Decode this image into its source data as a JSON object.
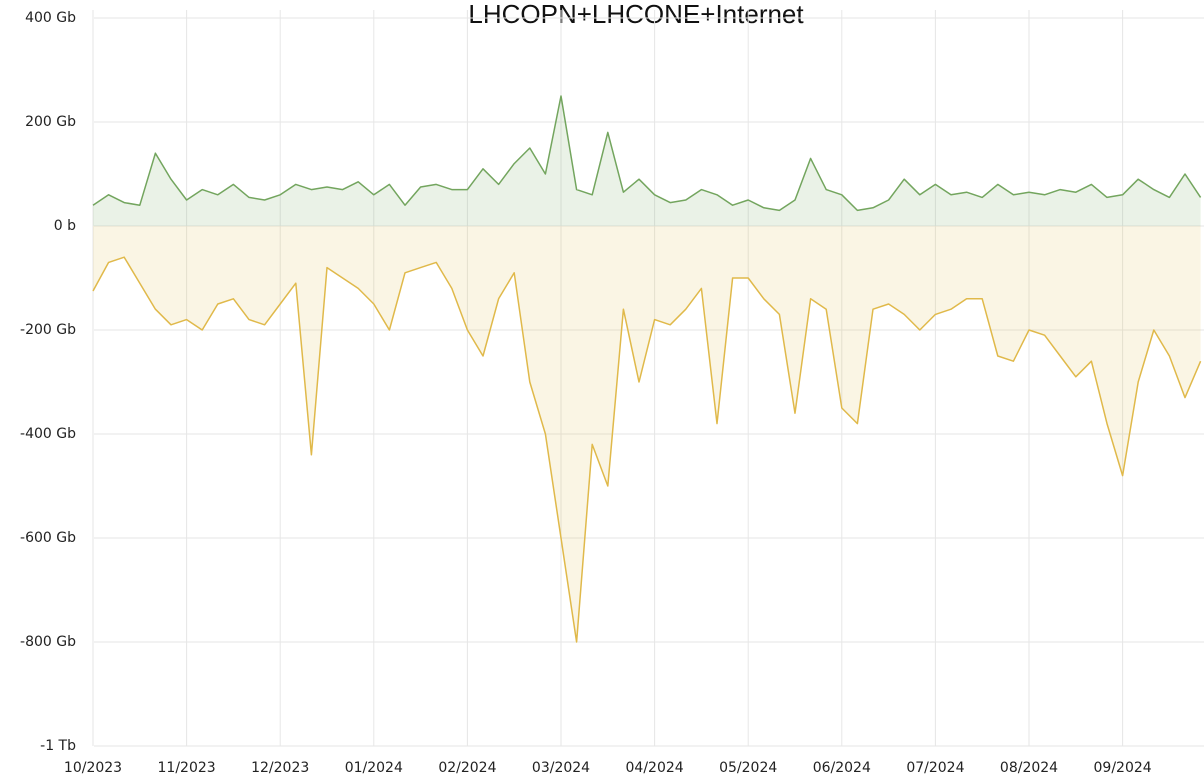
{
  "chart_data": {
    "type": "line",
    "title": "LHCOPN+LHCONE+Internet",
    "categories": [
      "10/2023",
      null,
      null,
      null,
      null,
      null,
      "11/2023",
      null,
      null,
      null,
      null,
      null,
      "12/2023",
      null,
      null,
      null,
      null,
      null,
      "01/2024",
      null,
      null,
      null,
      null,
      null,
      "02/2024",
      null,
      null,
      null,
      null,
      null,
      "03/2024",
      null,
      null,
      null,
      null,
      null,
      "04/2024",
      null,
      null,
      null,
      null,
      null,
      "05/2024",
      null,
      null,
      null,
      null,
      null,
      "06/2024",
      null,
      null,
      null,
      null,
      null,
      "07/2024",
      null,
      null,
      null,
      null,
      null,
      "08/2024",
      null,
      null,
      null,
      null,
      null,
      "09/2024",
      null,
      null,
      null,
      null,
      null
    ],
    "series": [
      {
        "color": "#73a55e",
        "values": [
          40,
          60,
          45,
          40,
          140,
          90,
          50,
          70,
          60,
          80,
          55,
          50,
          60,
          80,
          70,
          75,
          70,
          85,
          60,
          80,
          40,
          75,
          80,
          70,
          70,
          110,
          80,
          120,
          150,
          100,
          250,
          70,
          60,
          180,
          65,
          90,
          60,
          45,
          50,
          70,
          60,
          40,
          50,
          35,
          30,
          50,
          130,
          70,
          60,
          30,
          35,
          50,
          90,
          60,
          80,
          60,
          65,
          55,
          80,
          60,
          65,
          60,
          70,
          65,
          80,
          55,
          60,
          90,
          70,
          55,
          100,
          55
        ]
      },
      {
        "color": "#e0b94a",
        "values": [
          -125,
          -70,
          -60,
          -110,
          -160,
          -190,
          -180,
          -200,
          -150,
          -140,
          -180,
          -190,
          -150,
          -110,
          -440,
          -80,
          -100,
          -120,
          -150,
          -200,
          -90,
          -80,
          -70,
          -120,
          -200,
          -250,
          -140,
          -90,
          -300,
          -400,
          -600,
          -800,
          -420,
          -500,
          -160,
          -300,
          -180,
          -190,
          -160,
          -120,
          -380,
          -100,
          -100,
          -140,
          -170,
          -360,
          -140,
          -160,
          -350,
          -380,
          -160,
          -150,
          -170,
          -200,
          -170,
          -160,
          -140,
          -140,
          -250,
          -260,
          -200,
          -210,
          -250,
          -290,
          -260,
          -380,
          -480,
          -300,
          -200,
          -250,
          -330,
          -260
        ]
      }
    ],
    "ylim": [
      -1000,
      400
    ],
    "yticks": [
      {
        "value": 400,
        "label": "400 Gb"
      },
      {
        "value": 200,
        "label": "200 Gb"
      },
      {
        "value": 0,
        "label": "0 b"
      },
      {
        "value": -200,
        "label": "-200 Gb"
      },
      {
        "value": -400,
        "label": "-400 Gb"
      },
      {
        "value": -600,
        "label": "-600 Gb"
      },
      {
        "value": -800,
        "label": "-800 Gb"
      },
      {
        "value": -1000,
        "label": "-1 Tb"
      }
    ],
    "grid": true
  }
}
